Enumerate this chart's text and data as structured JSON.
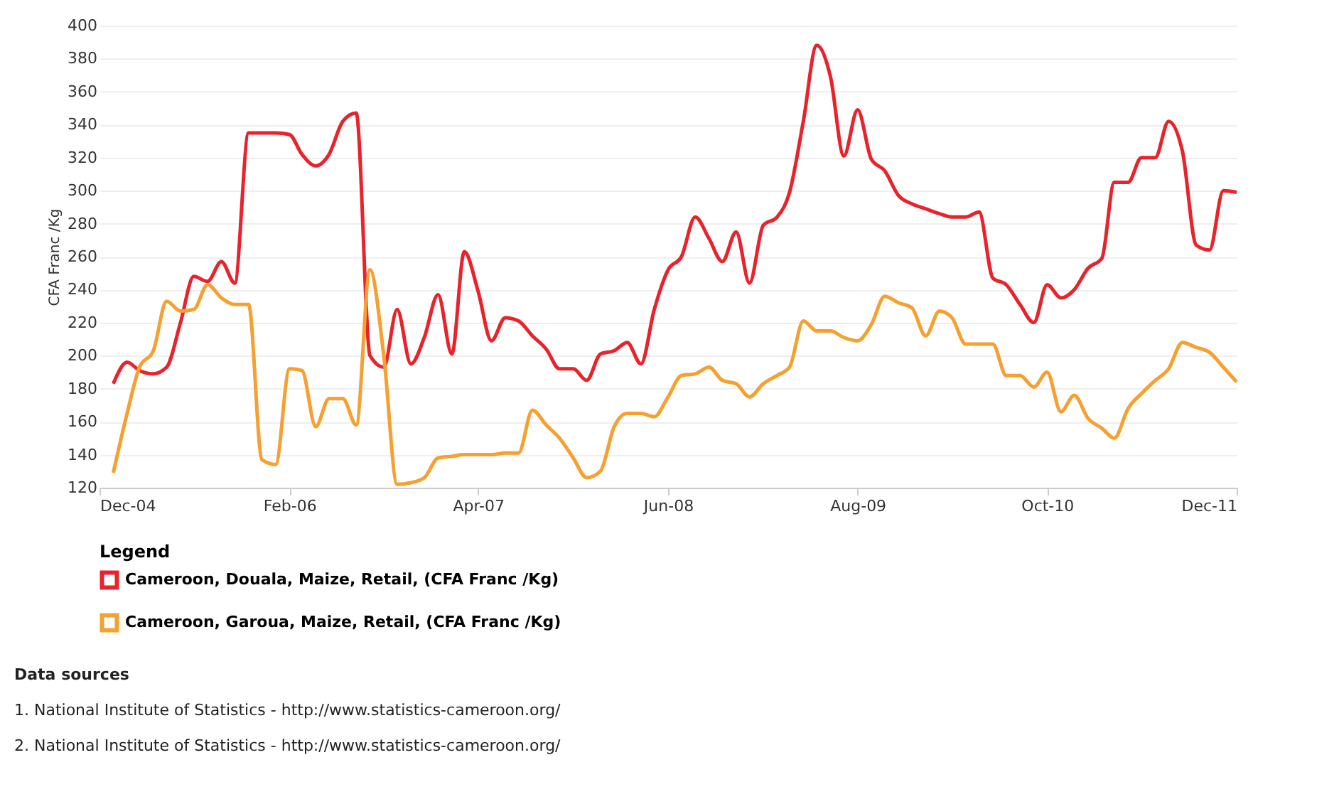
{
  "chart_data": {
    "type": "line",
    "ylabel": "CFA Franc /Kg",
    "legend_title": "Legend",
    "x": [
      "2005-01",
      "2005-02",
      "2005-03",
      "2005-04",
      "2005-05",
      "2005-06",
      "2005-07",
      "2005-08",
      "2005-09",
      "2005-10",
      "2005-11",
      "2005-12",
      "2006-01",
      "2006-02",
      "2006-03",
      "2006-04",
      "2006-05",
      "2006-06",
      "2006-07",
      "2006-08",
      "2006-09",
      "2006-10",
      "2006-11",
      "2006-12",
      "2007-01",
      "2007-02",
      "2007-03",
      "2007-04",
      "2007-05",
      "2007-06",
      "2007-07",
      "2007-08",
      "2007-09",
      "2007-10",
      "2007-11",
      "2007-12",
      "2008-01",
      "2008-02",
      "2008-03",
      "2008-04",
      "2008-05",
      "2008-06",
      "2008-07",
      "2008-08",
      "2008-09",
      "2008-10",
      "2008-11",
      "2008-12",
      "2009-01",
      "2009-02",
      "2009-03",
      "2009-04",
      "2009-05",
      "2009-06",
      "2009-07",
      "2009-08",
      "2009-09",
      "2009-10",
      "2009-11",
      "2009-12",
      "2010-01",
      "2010-02",
      "2010-03",
      "2010-04",
      "2010-05",
      "2010-06",
      "2010-07",
      "2010-08",
      "2010-09",
      "2010-10",
      "2010-11",
      "2010-12",
      "2011-01",
      "2011-02",
      "2011-03",
      "2011-04",
      "2011-05",
      "2011-06",
      "2011-07",
      "2011-08",
      "2011-09",
      "2011-10",
      "2011-11",
      "2011-12"
    ],
    "series": [
      {
        "name": "Cameroon, Douala, Maize, Retail, (CFA Franc /Kg)",
        "color": "#e8232b",
        "values": [
          183,
          196,
          191,
          189,
          193,
          220,
          248,
          245,
          257,
          244,
          335,
          335,
          335,
          334,
          322,
          315,
          322,
          342,
          347,
          200,
          193,
          228,
          195,
          211,
          237,
          201,
          263,
          239,
          209,
          223,
          221,
          212,
          204,
          192,
          192,
          185,
          201,
          203,
          208,
          195,
          228,
          252,
          260,
          284,
          271,
          257,
          275,
          244,
          279,
          284,
          299,
          342,
          388,
          369,
          321,
          349,
          319,
          312,
          297,
          292,
          289,
          286,
          284,
          284,
          287,
          247,
          243,
          231,
          220,
          243,
          235,
          240,
          253,
          259,
          305,
          305,
          320,
          320,
          342,
          324,
          267,
          264,
          300,
          299
        ]
      },
      {
        "name": "Cameroon, Garoua, Maize, Retail, (CFA Franc /Kg)",
        "color": "#f5a030",
        "values": [
          129,
          165,
          193,
          203,
          233,
          227,
          228,
          243,
          235,
          231,
          231,
          137,
          134,
          192,
          191,
          157,
          174,
          174,
          158,
          252,
          200,
          122,
          123,
          126,
          138,
          139,
          140,
          140,
          140,
          141,
          141,
          167,
          158,
          150,
          138,
          126,
          130,
          157,
          165,
          165,
          163,
          175,
          188,
          189,
          193,
          185,
          183,
          175,
          183,
          188,
          193,
          221,
          215,
          215,
          211,
          209,
          219,
          236,
          232,
          229,
          212,
          227,
          223,
          207,
          207,
          207,
          188,
          188,
          181,
          190,
          166,
          176,
          162,
          156,
          150,
          168,
          177,
          185,
          192,
          208,
          205,
          202,
          193,
          184
        ]
      }
    ],
    "xlim": [
      "2004-12",
      "2011-12"
    ],
    "xticks": [
      {
        "value": "2004-12",
        "label": "Dec-04"
      },
      {
        "value": "2006-02",
        "label": "Feb-06"
      },
      {
        "value": "2007-04",
        "label": "Apr-07"
      },
      {
        "value": "2008-06",
        "label": "Jun-08"
      },
      {
        "value": "2009-08",
        "label": "Aug-09"
      },
      {
        "value": "2010-10",
        "label": "Oct-10"
      },
      {
        "value": "2011-12",
        "label": "Dec-11"
      }
    ],
    "ylim": [
      120,
      400
    ],
    "yticks": [
      120,
      140,
      160,
      180,
      200,
      220,
      240,
      260,
      280,
      300,
      320,
      340,
      360,
      380,
      400
    ],
    "grid": "y",
    "legend": "bottom",
    "marker": "none",
    "line_style": "solid",
    "annotations": [
      "Data sources",
      "1. National Institute of Statistics - http://www.statistics-cameroon.org/",
      "2. National Institute of Statistics - http://www.statistics-cameroon.org/"
    ]
  }
}
